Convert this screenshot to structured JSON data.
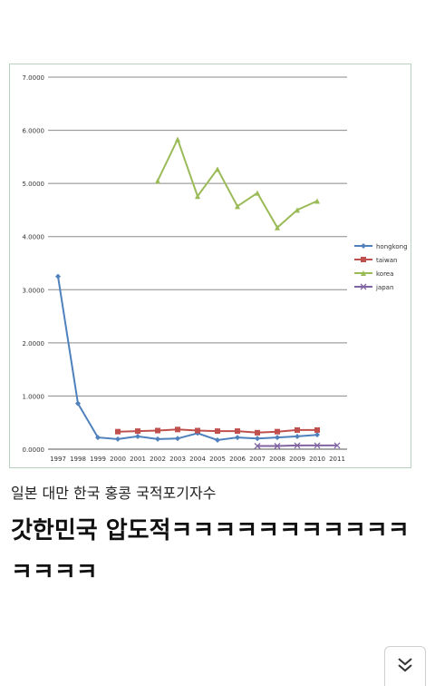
{
  "caption": "일본 대만 한국 홍콩 국적포기자수",
  "headline": "갓한민국 압도적ㅋㅋㅋㅋㅋㅋㅋㅋㅋㅋㅋㅋㅋㅋㅋ",
  "scroll_button": {
    "icon": "double-chevron-down-icon"
  },
  "chart_data": {
    "type": "line",
    "title": "",
    "xlabel": "",
    "ylabel": "",
    "categories": [
      "1997",
      "1998",
      "1999",
      "2000",
      "2001",
      "2002",
      "2003",
      "2004",
      "2005",
      "2006",
      "2007",
      "2008",
      "2009",
      "2010",
      "2011"
    ],
    "ylim": [
      0,
      7
    ],
    "yticks": [
      "0.0000",
      "1.0000",
      "2.0000",
      "3.0000",
      "4.0000",
      "5.0000",
      "6.0000",
      "7.0000"
    ],
    "grid": true,
    "legend_position": "right",
    "series": [
      {
        "name": "hongkong",
        "color": "#4f81bd",
        "marker": "diamond",
        "values": [
          3.25,
          0.86,
          0.22,
          0.19,
          0.24,
          0.19,
          0.2,
          0.3,
          0.17,
          0.22,
          0.2,
          0.22,
          0.24,
          0.27,
          null
        ]
      },
      {
        "name": "taiwan",
        "color": "#c0504d",
        "marker": "square",
        "values": [
          null,
          null,
          null,
          0.33,
          0.34,
          0.35,
          0.37,
          0.35,
          0.34,
          0.34,
          0.31,
          0.33,
          0.36,
          0.36,
          null
        ]
      },
      {
        "name": "korea",
        "color": "#9bbb59",
        "marker": "triangle",
        "values": [
          null,
          null,
          null,
          null,
          null,
          5.05,
          5.83,
          4.76,
          5.27,
          4.57,
          4.82,
          4.17,
          4.5,
          4.67,
          null
        ]
      },
      {
        "name": "japan",
        "color": "#8064a2",
        "marker": "x",
        "values": [
          null,
          null,
          null,
          null,
          null,
          null,
          null,
          null,
          null,
          null,
          0.06,
          0.06,
          0.07,
          0.07,
          0.07
        ]
      }
    ]
  }
}
